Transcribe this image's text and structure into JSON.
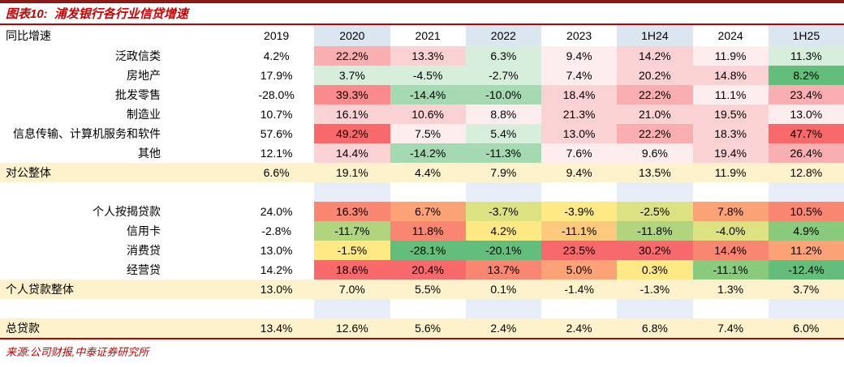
{
  "title": {
    "prefix": "图表10:",
    "text": "浦发银行各行业信贷增速"
  },
  "source": "来源:公司财报,中泰证券研究所",
  "colors": {
    "accent_red": "#C00000",
    "title_red": "#CC0000",
    "top_bar": "#8C1A15",
    "header_shade": "#DCE6F1",
    "spacer_shade": "#E7EEF7",
    "summary_bg": "#FEF2CC",
    "palette": {
      "w": "#FFFFFF",
      "p0": "#FDEDEE",
      "p1": "#FBD2D4",
      "p2": "#F9AFB1",
      "p3": "#F98B8D",
      "r": "#F8696B",
      "g1": "#D7EEDD",
      "g2": "#A5D9B2",
      "g3": "#63BE7B",
      "ro": "#F98670",
      "or": "#FBA376",
      "oy": "#FDC97D",
      "y": "#FFE984",
      "gy": "#DCE182",
      "yg": "#B1D47F",
      "lg": "#8ACA7D",
      "g": "#63BE7B"
    }
  },
  "chart_data": {
    "type": "table",
    "subtype": "heatmap",
    "corner_label": "同比增速",
    "columns": [
      "2019",
      "2020",
      "2021",
      "2022",
      "2023",
      "1H24",
      "2024",
      "1H25"
    ],
    "column_shaded": [
      false,
      true,
      false,
      true,
      false,
      true,
      false,
      true
    ],
    "rows": [
      {
        "label": "泛政信类",
        "kind": "item",
        "values": [
          "4.2%",
          "22.2%",
          "13.3%",
          "6.3%",
          "9.4%",
          "14.2%",
          "11.9%",
          "11.3%"
        ],
        "bg": [
          "w",
          "p2",
          "p1",
          "g1",
          "p0",
          "p1",
          "p0",
          "g1"
        ]
      },
      {
        "label": "房地产",
        "kind": "item",
        "values": [
          "17.9%",
          "3.7%",
          "-4.5%",
          "-2.7%",
          "7.4%",
          "20.2%",
          "14.8%",
          "8.2%"
        ],
        "bg": [
          "w",
          "g1",
          "g1",
          "g1",
          "p0",
          "p1",
          "p1",
          "g3"
        ]
      },
      {
        "label": "批发零售",
        "kind": "item",
        "values": [
          "-28.0%",
          "39.3%",
          "-14.4%",
          "-10.0%",
          "18.4%",
          "22.2%",
          "11.1%",
          "23.4%"
        ],
        "bg": [
          "w",
          "p3",
          "g2",
          "g2",
          "p1",
          "p2",
          "p0",
          "p2"
        ]
      },
      {
        "label": "制造业",
        "kind": "item",
        "values": [
          "10.7%",
          "16.1%",
          "10.6%",
          "8.8%",
          "21.3%",
          "21.0%",
          "19.5%",
          "13.0%"
        ],
        "bg": [
          "w",
          "p1",
          "p1",
          "p0",
          "p1",
          "p1",
          "p1",
          "p0"
        ]
      },
      {
        "label": "信息传输、计算机服务和软件",
        "kind": "item",
        "values": [
          "57.6%",
          "49.2%",
          "7.5%",
          "5.4%",
          "13.0%",
          "22.2%",
          "18.3%",
          "47.7%"
        ],
        "bg": [
          "w",
          "r",
          "p0",
          "g1",
          "p1",
          "p2",
          "p1",
          "r"
        ]
      },
      {
        "label": "其他",
        "kind": "item",
        "values": [
          "12.1%",
          "14.4%",
          "-14.2%",
          "-11.3%",
          "7.6%",
          "9.6%",
          "19.4%",
          "26.4%"
        ],
        "bg": [
          "w",
          "p1",
          "g2",
          "g2",
          "p0",
          "p0",
          "p1",
          "p2"
        ]
      },
      {
        "label": "对公整体",
        "kind": "summary",
        "values": [
          "6.6%",
          "19.1%",
          "4.4%",
          "7.9%",
          "9.4%",
          "13.5%",
          "11.9%",
          "12.8%"
        ]
      },
      {
        "label": "",
        "kind": "spacer"
      },
      {
        "label": "个人按揭贷款",
        "kind": "item",
        "values": [
          "24.0%",
          "16.3%",
          "6.7%",
          "-3.7%",
          "-3.9%",
          "-2.5%",
          "7.8%",
          "10.5%"
        ],
        "bg": [
          "w",
          "ro",
          "or",
          "gy",
          "y",
          "gy",
          "or",
          "ro"
        ]
      },
      {
        "label": "信用卡",
        "kind": "item",
        "values": [
          "-2.8%",
          "-11.7%",
          "11.8%",
          "4.2%",
          "-11.1%",
          "-11.8%",
          "-4.0%",
          "4.9%"
        ],
        "bg": [
          "w",
          "yg",
          "ro",
          "y",
          "oy",
          "yg",
          "gy",
          "lg"
        ]
      },
      {
        "label": "消费贷",
        "kind": "item",
        "values": [
          "13.0%",
          "-1.5%",
          "-28.1%",
          "-20.1%",
          "23.5%",
          "30.2%",
          "14.4%",
          "11.2%"
        ],
        "bg": [
          "w",
          "y",
          "g",
          "g",
          "r",
          "r",
          "ro",
          "or"
        ]
      },
      {
        "label": "经营贷",
        "kind": "item",
        "values": [
          "14.2%",
          "18.6%",
          "20.4%",
          "13.7%",
          "5.0%",
          "0.3%",
          "-11.1%",
          "-12.4%"
        ],
        "bg": [
          "w",
          "r",
          "r",
          "ro",
          "or",
          "y",
          "lg",
          "g"
        ]
      },
      {
        "label": "个人贷款整体",
        "kind": "summary",
        "values": [
          "13.0%",
          "7.0%",
          "5.5%",
          "0.1%",
          "-1.4%",
          "-1.3%",
          "1.3%",
          "3.7%"
        ]
      },
      {
        "label": "",
        "kind": "spacer"
      },
      {
        "label": "总贷款",
        "kind": "summary",
        "values": [
          "13.4%",
          "12.6%",
          "5.6%",
          "2.4%",
          "2.4%",
          "6.8%",
          "7.4%",
          "6.0%"
        ]
      }
    ]
  }
}
